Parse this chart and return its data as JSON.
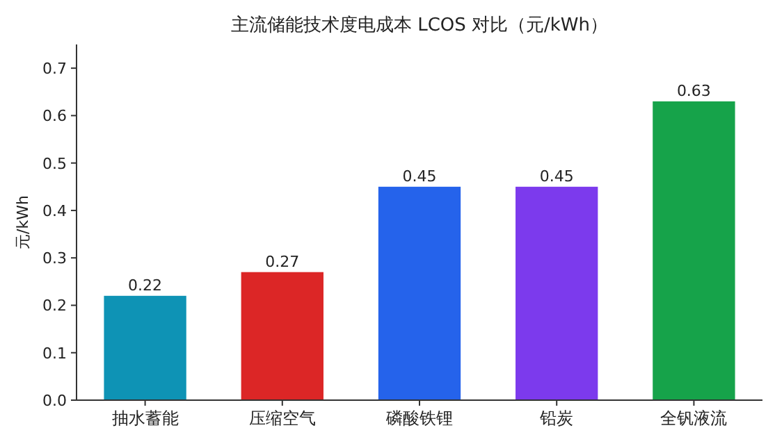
{
  "chart_data": {
    "type": "bar",
    "title": "主流储能技术度电成本 LCOS 对比（元/kWh）",
    "ylabel": "元/kWh",
    "categories": [
      "抽水蓄能",
      "压缩空气",
      "磷酸铁锂",
      "铅炭",
      "全钒液流"
    ],
    "values": [
      0.22,
      0.27,
      0.45,
      0.45,
      0.63
    ],
    "colors": [
      "#0e93b5",
      "#dc2626",
      "#2563eb",
      "#7c3aed",
      "#16a34a"
    ],
    "ylim": [
      0,
      0.75
    ],
    "yticks": [
      {
        "value": 0,
        "label": "0.0"
      },
      0.1,
      0.2,
      0.3,
      0.4,
      0.5,
      0.6,
      0.7
    ],
    "data_labels": true,
    "grid": false
  }
}
